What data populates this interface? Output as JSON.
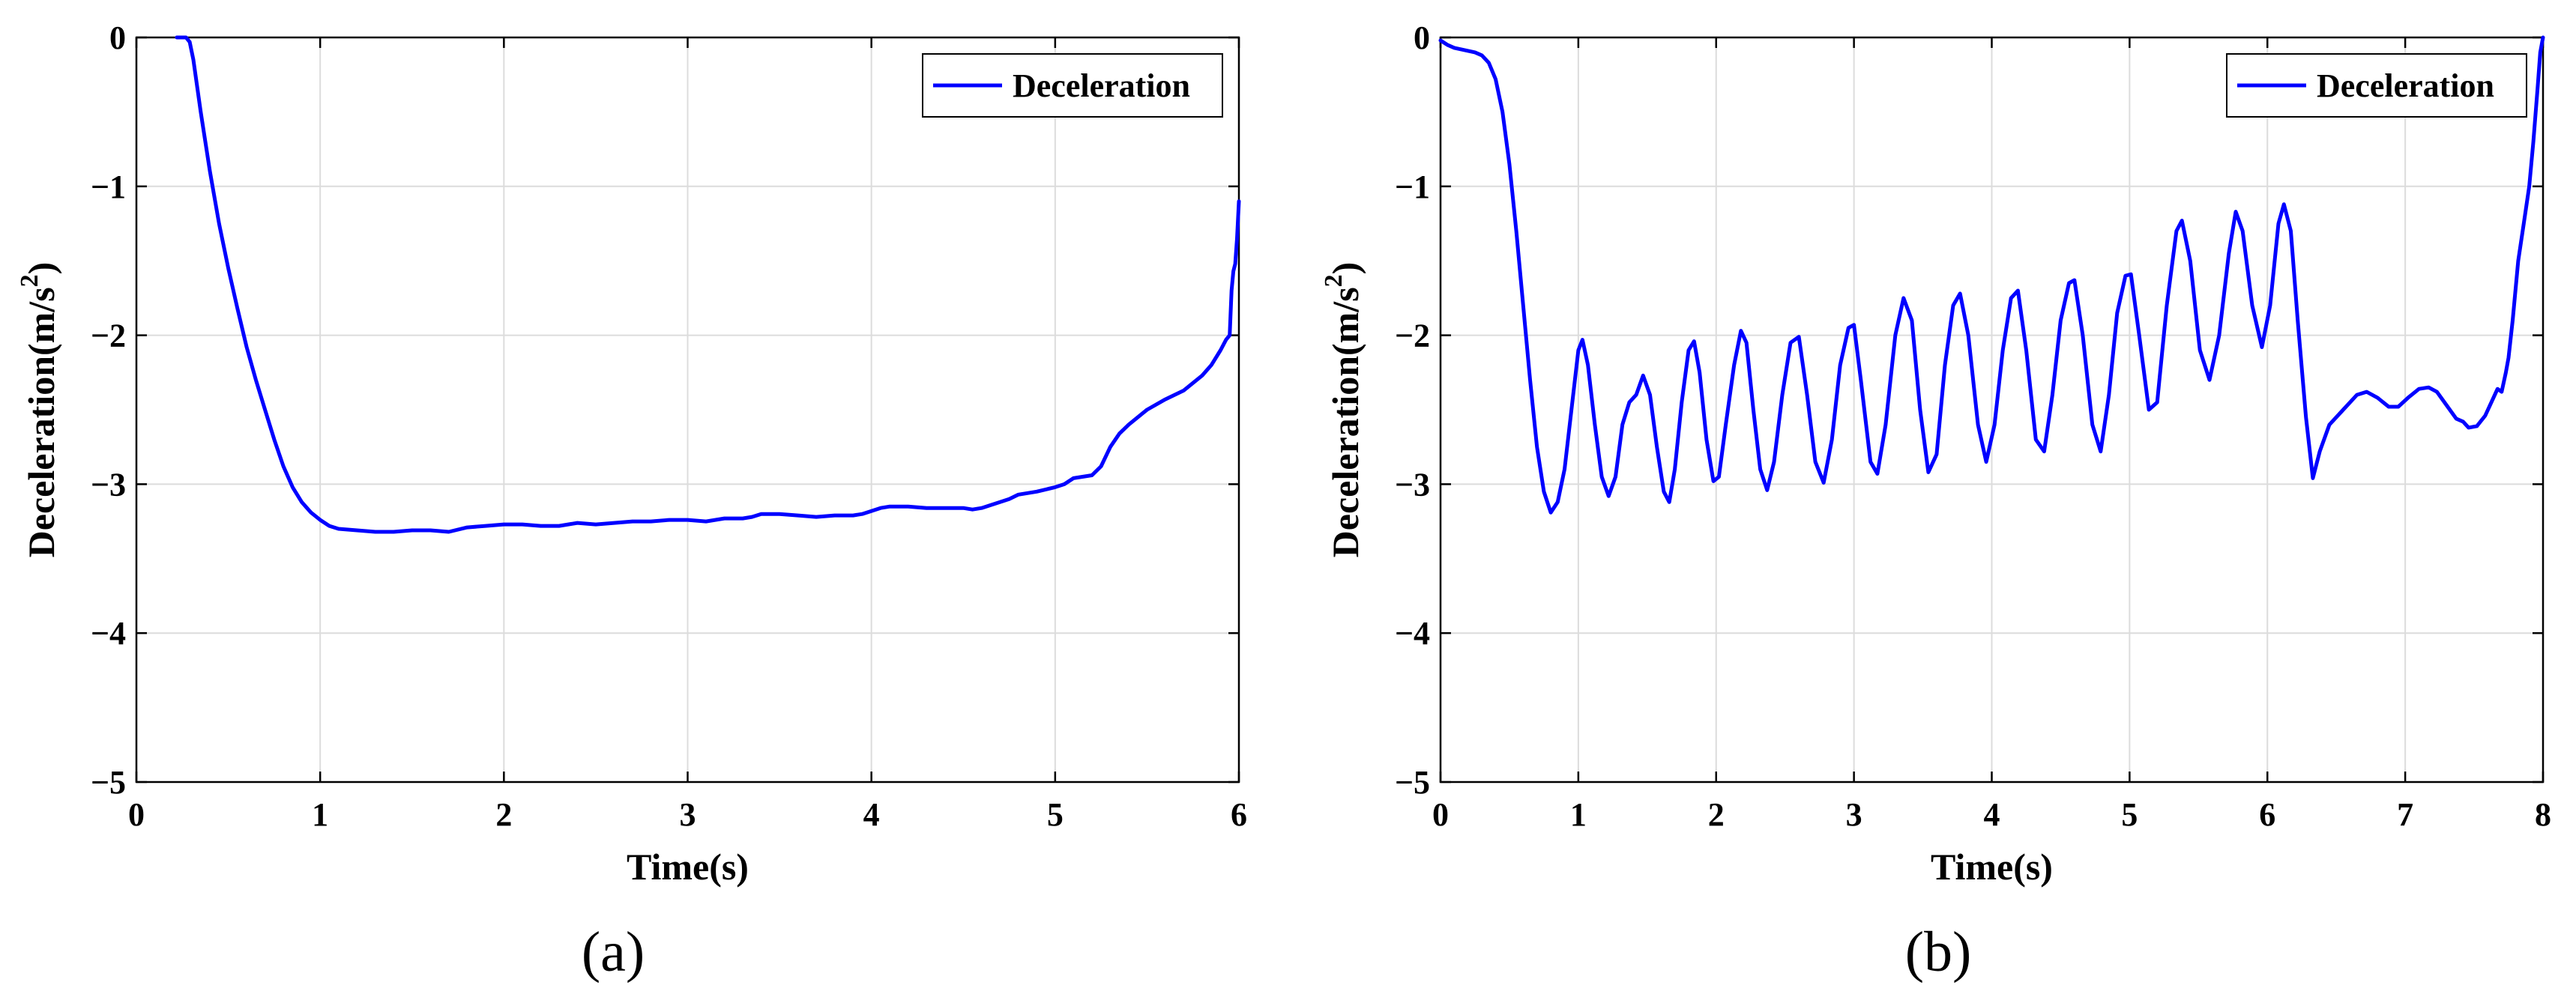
{
  "chart_data": [
    {
      "id": "a",
      "type": "line",
      "caption": "(a)",
      "xlabel": "Time(s)",
      "ylabel": "Deceleration(m/s",
      "ylabel_sup": "2",
      "ylabel_close": ")",
      "xlim": [
        0,
        6
      ],
      "ylim": [
        -5,
        0
      ],
      "xticks": [
        0,
        1,
        2,
        3,
        4,
        5,
        6
      ],
      "yticks": [
        -5,
        -4,
        -3,
        -2,
        -1,
        0
      ],
      "xtick_labels": [
        "0",
        "1",
        "2",
        "3",
        "4",
        "5",
        "6"
      ],
      "ytick_labels": [
        "−5",
        "−4",
        "−3",
        "−2",
        "−1",
        "0"
      ],
      "grid": true,
      "legend_position": "top-right",
      "series": [
        {
          "name": "Deceleration",
          "color": "#0000ff",
          "points": [
            [
              0.22,
              0.0
            ],
            [
              0.27,
              0.0
            ],
            [
              0.29,
              -0.03
            ],
            [
              0.31,
              -0.15
            ],
            [
              0.35,
              -0.5
            ],
            [
              0.4,
              -0.9
            ],
            [
              0.45,
              -1.25
            ],
            [
              0.5,
              -1.55
            ],
            [
              0.55,
              -1.82
            ],
            [
              0.6,
              -2.08
            ],
            [
              0.65,
              -2.3
            ],
            [
              0.7,
              -2.5
            ],
            [
              0.75,
              -2.7
            ],
            [
              0.8,
              -2.88
            ],
            [
              0.85,
              -3.02
            ],
            [
              0.9,
              -3.12
            ],
            [
              0.95,
              -3.19
            ],
            [
              1.0,
              -3.24
            ],
            [
              1.05,
              -3.28
            ],
            [
              1.1,
              -3.3
            ],
            [
              1.2,
              -3.31
            ],
            [
              1.3,
              -3.32
            ],
            [
              1.4,
              -3.32
            ],
            [
              1.5,
              -3.31
            ],
            [
              1.6,
              -3.31
            ],
            [
              1.7,
              -3.32
            ],
            [
              1.8,
              -3.29
            ],
            [
              1.9,
              -3.28
            ],
            [
              2.0,
              -3.27
            ],
            [
              2.1,
              -3.27
            ],
            [
              2.2,
              -3.28
            ],
            [
              2.3,
              -3.28
            ],
            [
              2.4,
              -3.26
            ],
            [
              2.5,
              -3.27
            ],
            [
              2.6,
              -3.26
            ],
            [
              2.7,
              -3.25
            ],
            [
              2.8,
              -3.25
            ],
            [
              2.9,
              -3.24
            ],
            [
              3.0,
              -3.24
            ],
            [
              3.1,
              -3.25
            ],
            [
              3.2,
              -3.23
            ],
            [
              3.3,
              -3.23
            ],
            [
              3.35,
              -3.22
            ],
            [
              3.4,
              -3.2
            ],
            [
              3.5,
              -3.2
            ],
            [
              3.6,
              -3.21
            ],
            [
              3.7,
              -3.22
            ],
            [
              3.8,
              -3.21
            ],
            [
              3.9,
              -3.21
            ],
            [
              3.95,
              -3.2
            ],
            [
              4.0,
              -3.18
            ],
            [
              4.05,
              -3.16
            ],
            [
              4.1,
              -3.15
            ],
            [
              4.2,
              -3.15
            ],
            [
              4.3,
              -3.16
            ],
            [
              4.4,
              -3.16
            ],
            [
              4.5,
              -3.16
            ],
            [
              4.55,
              -3.17
            ],
            [
              4.6,
              -3.16
            ],
            [
              4.65,
              -3.14
            ],
            [
              4.7,
              -3.12
            ],
            [
              4.75,
              -3.1
            ],
            [
              4.8,
              -3.07
            ],
            [
              4.9,
              -3.05
            ],
            [
              5.0,
              -3.02
            ],
            [
              5.05,
              -3.0
            ],
            [
              5.1,
              -2.96
            ],
            [
              5.2,
              -2.94
            ],
            [
              5.25,
              -2.88
            ],
            [
              5.3,
              -2.75
            ],
            [
              5.35,
              -2.66
            ],
            [
              5.4,
              -2.6
            ],
            [
              5.5,
              -2.5
            ],
            [
              5.6,
              -2.43
            ],
            [
              5.7,
              -2.37
            ],
            [
              5.8,
              -2.27
            ],
            [
              5.85,
              -2.2
            ],
            [
              5.9,
              -2.1
            ],
            [
              5.93,
              -2.03
            ],
            [
              5.95,
              -2.0
            ],
            [
              5.96,
              -1.7
            ],
            [
              5.97,
              -1.57
            ],
            [
              5.98,
              -1.52
            ],
            [
              5.99,
              -1.35
            ],
            [
              6.0,
              -1.1
            ]
          ]
        }
      ]
    },
    {
      "id": "b",
      "type": "line",
      "caption": "(b)",
      "xlabel": "Time(s)",
      "ylabel": "Deceleration(m/s",
      "ylabel_sup": "2",
      "ylabel_close": ")",
      "xlim": [
        0,
        8
      ],
      "ylim": [
        -5,
        0
      ],
      "xticks": [
        0,
        1,
        2,
        3,
        4,
        5,
        6,
        7,
        8
      ],
      "yticks": [
        -5,
        -4,
        -3,
        -2,
        -1,
        0
      ],
      "xtick_labels": [
        "0",
        "1",
        "2",
        "3",
        "4",
        "5",
        "6",
        "7",
        "8"
      ],
      "ytick_labels": [
        "−5",
        "−4",
        "−3",
        "−2",
        "−1",
        "0"
      ],
      "grid": true,
      "legend_position": "top-right",
      "series": [
        {
          "name": "Deceleration",
          "color": "#0000ff",
          "points": [
            [
              0.0,
              -0.02
            ],
            [
              0.05,
              -0.05
            ],
            [
              0.1,
              -0.07
            ],
            [
              0.15,
              -0.08
            ],
            [
              0.2,
              -0.09
            ],
            [
              0.25,
              -0.1
            ],
            [
              0.3,
              -0.12
            ],
            [
              0.35,
              -0.17
            ],
            [
              0.4,
              -0.28
            ],
            [
              0.45,
              -0.5
            ],
            [
              0.5,
              -0.85
            ],
            [
              0.55,
              -1.3
            ],
            [
              0.6,
              -1.8
            ],
            [
              0.65,
              -2.3
            ],
            [
              0.7,
              -2.75
            ],
            [
              0.75,
              -3.05
            ],
            [
              0.8,
              -3.19
            ],
            [
              0.85,
              -3.12
            ],
            [
              0.9,
              -2.9
            ],
            [
              0.95,
              -2.5
            ],
            [
              1.0,
              -2.1
            ],
            [
              1.03,
              -2.03
            ],
            [
              1.07,
              -2.2
            ],
            [
              1.12,
              -2.6
            ],
            [
              1.17,
              -2.95
            ],
            [
              1.22,
              -3.08
            ],
            [
              1.27,
              -2.95
            ],
            [
              1.32,
              -2.6
            ],
            [
              1.37,
              -2.45
            ],
            [
              1.42,
              -2.4
            ],
            [
              1.47,
              -2.27
            ],
            [
              1.52,
              -2.4
            ],
            [
              1.57,
              -2.75
            ],
            [
              1.62,
              -3.05
            ],
            [
              1.66,
              -3.12
            ],
            [
              1.7,
              -2.9
            ],
            [
              1.75,
              -2.45
            ],
            [
              1.8,
              -2.1
            ],
            [
              1.84,
              -2.04
            ],
            [
              1.88,
              -2.25
            ],
            [
              1.93,
              -2.7
            ],
            [
              1.98,
              -2.98
            ],
            [
              2.02,
              -2.95
            ],
            [
              2.07,
              -2.6
            ],
            [
              2.13,
              -2.2
            ],
            [
              2.18,
              -1.97
            ],
            [
              2.22,
              -2.05
            ],
            [
              2.27,
              -2.5
            ],
            [
              2.32,
              -2.9
            ],
            [
              2.37,
              -3.04
            ],
            [
              2.42,
              -2.85
            ],
            [
              2.48,
              -2.4
            ],
            [
              2.54,
              -2.05
            ],
            [
              2.6,
              -2.01
            ],
            [
              2.66,
              -2.4
            ],
            [
              2.72,
              -2.85
            ],
            [
              2.78,
              -2.99
            ],
            [
              2.84,
              -2.7
            ],
            [
              2.9,
              -2.2
            ],
            [
              2.96,
              -1.95
            ],
            [
              3.0,
              -1.93
            ],
            [
              3.05,
              -2.3
            ],
            [
              3.12,
              -2.85
            ],
            [
              3.17,
              -2.93
            ],
            [
              3.23,
              -2.6
            ],
            [
              3.3,
              -2.0
            ],
            [
              3.36,
              -1.75
            ],
            [
              3.42,
              -1.9
            ],
            [
              3.48,
              -2.5
            ],
            [
              3.54,
              -2.92
            ],
            [
              3.6,
              -2.8
            ],
            [
              3.66,
              -2.2
            ],
            [
              3.72,
              -1.8
            ],
            [
              3.77,
              -1.72
            ],
            [
              3.83,
              -2.0
            ],
            [
              3.9,
              -2.6
            ],
            [
              3.96,
              -2.85
            ],
            [
              4.02,
              -2.6
            ],
            [
              4.08,
              -2.1
            ],
            [
              4.14,
              -1.75
            ],
            [
              4.19,
              -1.7
            ],
            [
              4.25,
              -2.1
            ],
            [
              4.32,
              -2.7
            ],
            [
              4.38,
              -2.78
            ],
            [
              4.44,
              -2.4
            ],
            [
              4.5,
              -1.9
            ],
            [
              4.56,
              -1.65
            ],
            [
              4.6,
              -1.63
            ],
            [
              4.66,
              -2.0
            ],
            [
              4.73,
              -2.6
            ],
            [
              4.79,
              -2.78
            ],
            [
              4.85,
              -2.4
            ],
            [
              4.91,
              -1.85
            ],
            [
              4.97,
              -1.6
            ],
            [
              5.01,
              -1.59
            ],
            [
              5.07,
              -2.0
            ],
            [
              5.14,
              -2.5
            ],
            [
              5.2,
              -2.45
            ],
            [
              5.27,
              -1.8
            ],
            [
              5.34,
              -1.3
            ],
            [
              5.38,
              -1.23
            ],
            [
              5.44,
              -1.5
            ],
            [
              5.51,
              -2.1
            ],
            [
              5.58,
              -2.3
            ],
            [
              5.65,
              -2.0
            ],
            [
              5.72,
              -1.45
            ],
            [
              5.77,
              -1.17
            ],
            [
              5.82,
              -1.3
            ],
            [
              5.89,
              -1.8
            ],
            [
              5.96,
              -2.08
            ],
            [
              6.02,
              -1.8
            ],
            [
              6.08,
              -1.25
            ],
            [
              6.12,
              -1.12
            ],
            [
              6.17,
              -1.3
            ],
            [
              6.22,
              -1.9
            ],
            [
              6.28,
              -2.55
            ],
            [
              6.33,
              -2.96
            ],
            [
              6.38,
              -2.78
            ],
            [
              6.45,
              -2.6
            ],
            [
              6.55,
              -2.5
            ],
            [
              6.65,
              -2.4
            ],
            [
              6.72,
              -2.38
            ],
            [
              6.8,
              -2.42
            ],
            [
              6.88,
              -2.48
            ],
            [
              6.95,
              -2.48
            ],
            [
              7.02,
              -2.42
            ],
            [
              7.1,
              -2.36
            ],
            [
              7.17,
              -2.35
            ],
            [
              7.23,
              -2.38
            ],
            [
              7.3,
              -2.47
            ],
            [
              7.37,
              -2.56
            ],
            [
              7.42,
              -2.58
            ],
            [
              7.46,
              -2.62
            ],
            [
              7.52,
              -2.61
            ],
            [
              7.58,
              -2.54
            ],
            [
              7.63,
              -2.44
            ],
            [
              7.67,
              -2.36
            ],
            [
              7.7,
              -2.38
            ],
            [
              7.73,
              -2.25
            ],
            [
              7.75,
              -2.15
            ],
            [
              7.78,
              -1.9
            ],
            [
              7.82,
              -1.5
            ],
            [
              7.86,
              -1.25
            ],
            [
              7.9,
              -1.0
            ],
            [
              7.93,
              -0.7
            ],
            [
              7.96,
              -0.35
            ],
            [
              7.98,
              -0.1
            ],
            [
              8.0,
              0.0
            ]
          ]
        }
      ]
    }
  ]
}
